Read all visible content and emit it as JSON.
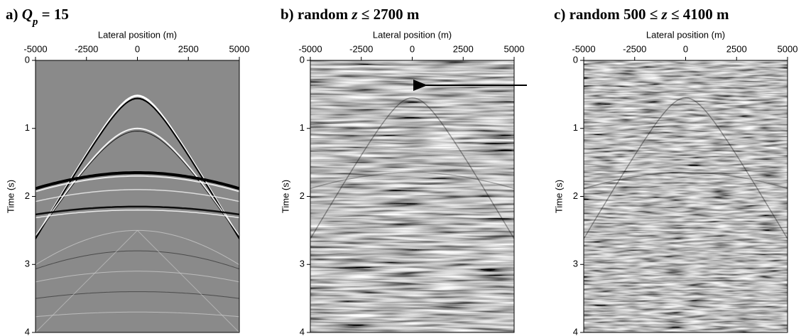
{
  "chart_data": [
    {
      "type": "seismic",
      "title": [
        {
          "text": "a) "
        },
        {
          "text": "Q",
          "style": "italic"
        },
        {
          "text": "p",
          "style": "sub-italic"
        },
        {
          "text": " = 15"
        }
      ],
      "x_label": "Lateral position (m)",
      "y_label": "Time (s)",
      "xlim": [
        -5000,
        5000
      ],
      "xticks": [
        -5000,
        -2500,
        0,
        2500,
        5000
      ],
      "ylim": [
        0,
        4
      ],
      "yticks": [
        0,
        1,
        2,
        3,
        4
      ],
      "y_inverted": true,
      "texture": "clean"
    },
    {
      "type": "seismic",
      "title": [
        {
          "text": "b) random "
        },
        {
          "text": "z",
          "style": "italic"
        },
        {
          "text": " ≤ 2700 m"
        }
      ],
      "x_label": "Lateral position (m)",
      "y_label": "Time (s)",
      "xlim": [
        -5000,
        5000
      ],
      "xticks": [
        -5000,
        -2500,
        0,
        2500,
        5000
      ],
      "ylim": [
        0,
        4
      ],
      "yticks": [
        0,
        1,
        2,
        3,
        4
      ],
      "y_inverted": true,
      "texture": "noise"
    },
    {
      "type": "seismic",
      "title": [
        {
          "text": "c) random 500 ≤ "
        },
        {
          "text": "z",
          "style": "italic"
        },
        {
          "text": " ≤ 4100 m"
        }
      ],
      "x_label": "Lateral position (m)",
      "y_label": "Time (s)",
      "xlim": [
        -5000,
        5000
      ],
      "xticks": [
        -5000,
        -2500,
        0,
        2500,
        5000
      ],
      "ylim": [
        0,
        4
      ],
      "yticks": [
        0,
        1,
        2,
        3,
        4
      ],
      "y_inverted": true,
      "texture": "fine-noise"
    }
  ]
}
